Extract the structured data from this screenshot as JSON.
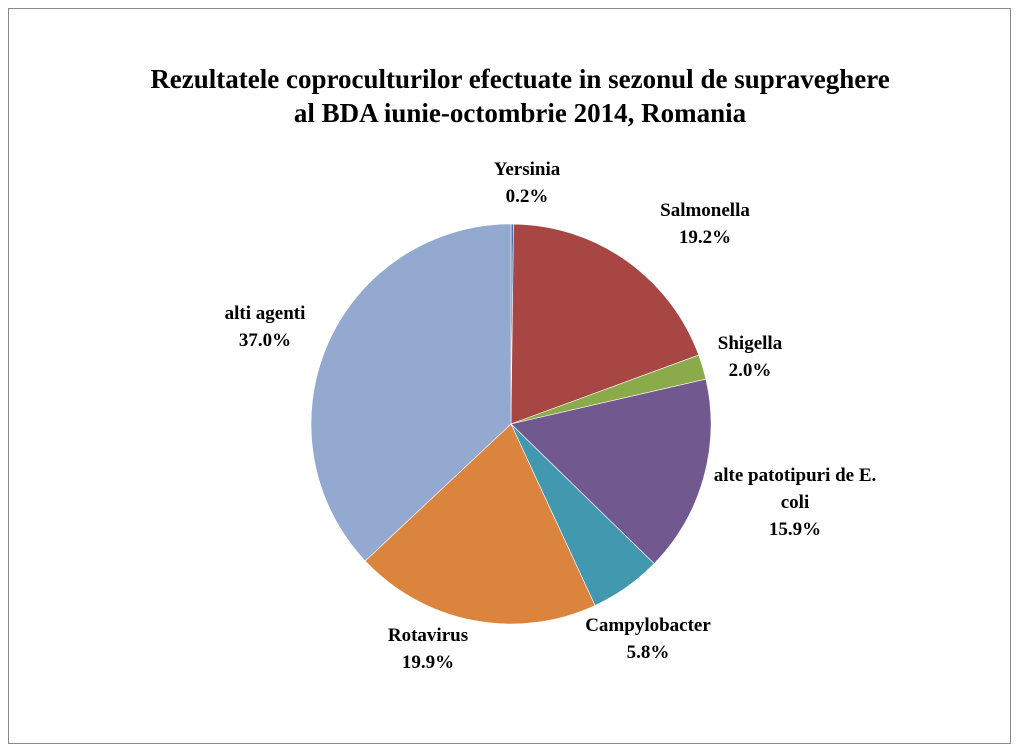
{
  "chart_data": {
    "type": "pie",
    "title": "Rezultatele coproculturilor efectuate in sezonul de supraveghere al BDA iunie-octombrie 2014, Romania",
    "categories": [
      "Yersinia",
      "Salmonella",
      "Shigella",
      "alte patotipuri de E. coli",
      "Campylobacter",
      "Rotavirus",
      "alti agenti"
    ],
    "values": [
      0.2,
      19.2,
      2.0,
      15.9,
      5.8,
      19.9,
      37.0
    ],
    "value_labels": [
      "0.2%",
      "19.2%",
      "2.0%",
      "15.9%",
      "5.8%",
      "19.9%",
      "37.0%"
    ],
    "colors": [
      "#4f6fa8",
      "#a84644",
      "#8baa4a",
      "#71588f",
      "#4298af",
      "#db843d",
      "#93a9cf"
    ]
  }
}
